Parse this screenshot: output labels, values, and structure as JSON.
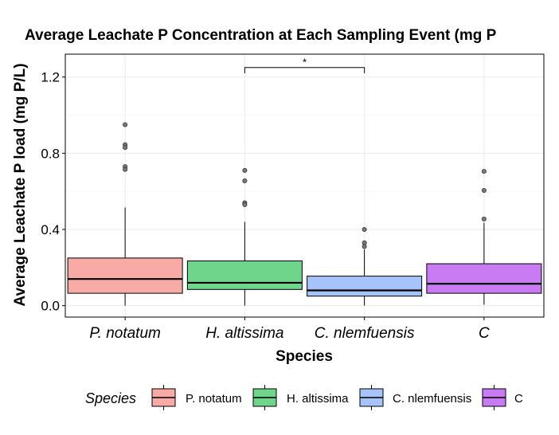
{
  "chart_data": {
    "type": "boxplot",
    "title": "Average Leachate P Concentration at Each Sampling Event (mg P",
    "xlabel": "Species",
    "ylabel": "Average Leachate P load (mg P/L)",
    "ylim": [
      -0.06,
      1.32
    ],
    "yticks": [
      0.0,
      0.4,
      0.8,
      1.2
    ],
    "ytick_labels": [
      "0.0",
      "0.4",
      "0.8",
      "1.2"
    ],
    "grid": true,
    "legend_title": "Species",
    "legend_position": "bottom",
    "categories": [
      "P. notatum",
      "H. altissima",
      "C. nlemfuensis",
      "C"
    ],
    "legend_labels": [
      "P. notatum",
      "H. altissima",
      "C. nlemfuensis",
      "C"
    ],
    "colors": [
      "#f8aaa6",
      "#6fd58a",
      "#a6c4fb",
      "#c97bf4"
    ],
    "boxes": [
      {
        "min": 0.0,
        "q1": 0.065,
        "median": 0.14,
        "q3": 0.25,
        "max": 0.515,
        "outliers": [
          0.95,
          0.845,
          0.83,
          0.73,
          0.715
        ]
      },
      {
        "min": 0.0,
        "q1": 0.085,
        "median": 0.12,
        "q3": 0.235,
        "max": 0.44,
        "outliers": [
          0.71,
          0.655,
          0.54,
          0.53
        ]
      },
      {
        "min": 0.0,
        "q1": 0.05,
        "median": 0.08,
        "q3": 0.155,
        "max": 0.295,
        "outliers": [
          0.4,
          0.33,
          0.31
        ]
      },
      {
        "min": 0.005,
        "q1": 0.065,
        "median": 0.115,
        "q3": 0.22,
        "max": 0.435,
        "outliers": [
          0.705,
          0.605,
          0.455
        ]
      }
    ],
    "annotations": [
      {
        "text": "*",
        "from": "H. altissima",
        "to": "C. nlemfuensis",
        "y": 1.25,
        "tip_y": 1.22
      }
    ]
  }
}
